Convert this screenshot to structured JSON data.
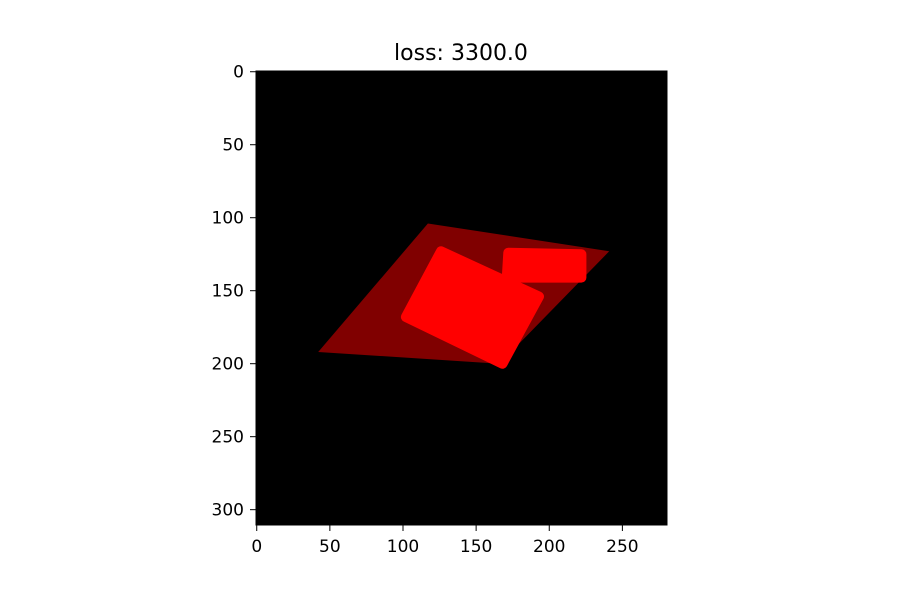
{
  "chart_data": {
    "type": "heatmap",
    "title": "loss: 3300.0",
    "xlabel": "",
    "ylabel": "",
    "x_ticks": [
      0,
      50,
      100,
      150,
      200,
      250
    ],
    "y_ticks": [
      0,
      50,
      100,
      150,
      200,
      250,
      300
    ],
    "xlim": [
      -0.5,
      280.5
    ],
    "ylim": [
      310.5,
      -0.5
    ],
    "y_axis_inverted": true,
    "grid": false,
    "legend": "none",
    "background_color": "#000000",
    "regions": [
      {
        "id": "parallelogram",
        "color": "#800000",
        "shape": "polygon",
        "points": [
          [
            117,
            104
          ],
          [
            241,
            123
          ],
          [
            166,
            200
          ],
          [
            42,
            192
          ]
        ]
      },
      {
        "id": "rotated-square",
        "color": "#ff0000",
        "shape": "rounded-polygon",
        "points": [
          [
            126,
            123
          ],
          [
            193,
            154
          ],
          [
            168,
            200
          ],
          [
            102,
            168
          ]
        ]
      },
      {
        "id": "small-rounded-rect",
        "color": "#ff0000",
        "shape": "rounded-polygon",
        "points": [
          [
            172,
            124
          ],
          [
            222,
            125
          ],
          [
            222,
            141
          ],
          [
            171,
            141
          ]
        ]
      }
    ]
  }
}
